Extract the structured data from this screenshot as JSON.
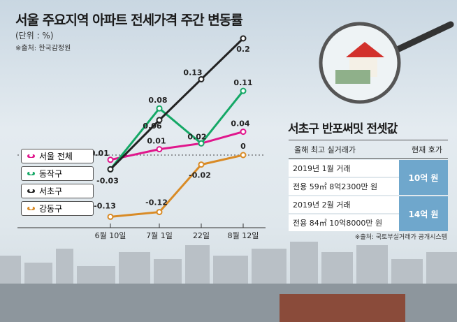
{
  "title": "서울 주요지역 아파트 전세가격 주간 변동률",
  "unit": "(단위 : %)",
  "source": "※출처: 한국감정원",
  "chart_data": {
    "type": "line",
    "title": "서울 주요지역 아파트 전세가격 주간 변동률",
    "ylabel": "%",
    "categories": [
      "6월 10일",
      "7월 1일",
      "22일",
      "8월 12일"
    ],
    "series": [
      {
        "name": "서울 전체",
        "color": "#e0168c",
        "values": [
          -0.01,
          0.01,
          0.02,
          0.04
        ],
        "labels": [
          "-0.01",
          "0.01",
          "",
          "0.04"
        ]
      },
      {
        "name": "동작구",
        "color": "#14a866",
        "values": [
          -0.03,
          0.08,
          0.02,
          0.11
        ],
        "labels": [
          "",
          "0.08",
          "0.02",
          "0.11"
        ]
      },
      {
        "name": "서초구",
        "color": "#222222",
        "values": [
          -0.03,
          0.06,
          0.13,
          0.2
        ],
        "labels": [
          "-0.03",
          "0.06",
          "0.13",
          "0.2"
        ]
      },
      {
        "name": "강동구",
        "color": "#d98b26",
        "values": [
          -0.13,
          -0.12,
          -0.02,
          0
        ],
        "labels": [
          "-0.13",
          "-0.12",
          "-0.02",
          "0"
        ]
      }
    ],
    "reference_line": 0
  },
  "table": {
    "title": "서초구 반포써밋 전셋값",
    "headers": [
      "올해 최고 실거래가",
      "현재 호가"
    ],
    "rows": [
      {
        "date": "2019년 1월 거래",
        "detail": "전용 59㎡ 8억2300만 원",
        "ask": "10억 원"
      },
      {
        "date": "2019년 2월 거래",
        "detail": "전용 84㎡ 10억8000만 원",
        "ask": "14억 원"
      }
    ],
    "source": "※출처: 국토부실거래가 공개시스템"
  }
}
